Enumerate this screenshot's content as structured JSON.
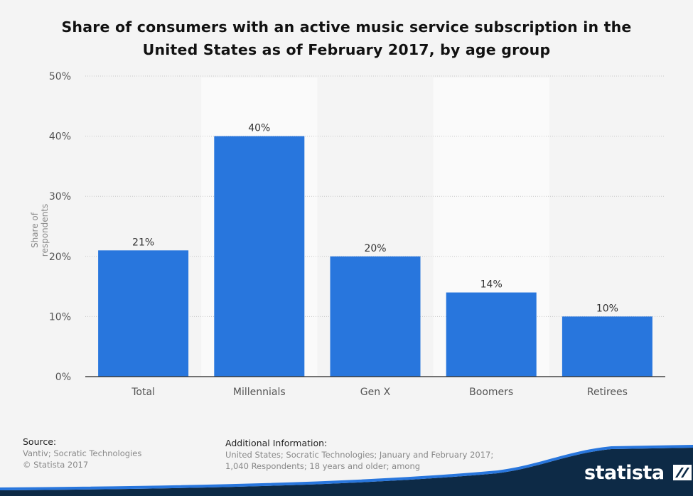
{
  "chart_data": {
    "type": "bar",
    "title": "Share of consumers with an active music service subscription in the United States as of February 2017, by age group",
    "ylabel": "Share of respondents",
    "xlabel": "",
    "categories": [
      "Total",
      "Millennials",
      "Gen X",
      "Boomers",
      "Retirees"
    ],
    "values": [
      21,
      40,
      20,
      14,
      10
    ],
    "value_labels": [
      "21%",
      "40%",
      "20%",
      "14%",
      "10%"
    ],
    "ylim": [
      0,
      50
    ],
    "yticks": [
      "0%",
      "10%",
      "20%",
      "30%",
      "40%",
      "50%"
    ],
    "grid": true,
    "bar_color": "#2876dd"
  },
  "footer": {
    "source_title": "Source:",
    "source_lines": [
      "Vantiv; Socratic Technologies",
      "© Statista 2017"
    ],
    "info_title": "Additional Information:",
    "info_lines": [
      "United States; Socratic Technologies; January and February 2017;",
      "1,040 Respondents; 18 years and older; among"
    ]
  },
  "brand": {
    "logo_text": "statista",
    "logo_icon": "statista-logo-icon",
    "color": "#0d2a46"
  }
}
